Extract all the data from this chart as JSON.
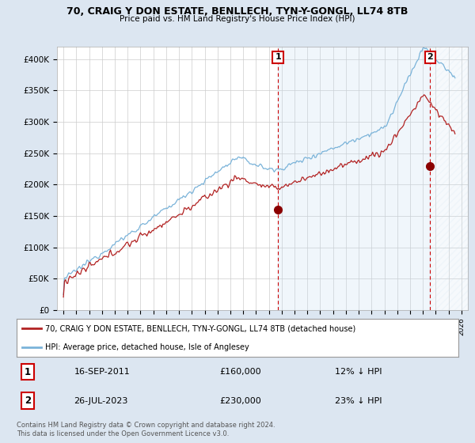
{
  "title1": "70, CRAIG Y DON ESTATE, BENLLECH, TYN-Y-GONGL, LL74 8TB",
  "title2": "Price paid vs. HM Land Registry's House Price Index (HPI)",
  "ylabel_ticks": [
    "£0",
    "£50K",
    "£100K",
    "£150K",
    "£200K",
    "£250K",
    "£300K",
    "£350K",
    "£400K"
  ],
  "ytick_vals": [
    0,
    50000,
    100000,
    150000,
    200000,
    250000,
    300000,
    350000,
    400000
  ],
  "ylim": [
    0,
    420000
  ],
  "xlim_start": 1994.5,
  "xlim_end": 2026.5,
  "sale1_x": 2011.71,
  "sale1_y": 160000,
  "sale1_label": "1",
  "sale2_x": 2023.56,
  "sale2_y": 230000,
  "sale2_label": "2",
  "hpi_color": "#7ab3d9",
  "price_color": "#b22222",
  "sale_marker_color": "#8b0000",
  "dashed_line_color": "#cc0000",
  "fill_between_color": "#d6e8f5",
  "hatch_color": "#ccddee",
  "legend_house": "70, CRAIG Y DON ESTATE, BENLLECH, TYN-Y-GONGL, LL74 8TB (detached house)",
  "legend_hpi": "HPI: Average price, detached house, Isle of Anglesey",
  "annotation1_date": "16-SEP-2011",
  "annotation1_price": "£160,000",
  "annotation1_hpi": "12% ↓ HPI",
  "annotation2_date": "26-JUL-2023",
  "annotation2_price": "£230,000",
  "annotation2_hpi": "23% ↓ HPI",
  "footnote": "Contains HM Land Registry data © Crown copyright and database right 2024.\nThis data is licensed under the Open Government Licence v3.0.",
  "bg_color": "#dce6f1",
  "plot_bg_color": "#ffffff",
  "grid_color": "#cccccc",
  "box_edge_color": "#cc0000"
}
